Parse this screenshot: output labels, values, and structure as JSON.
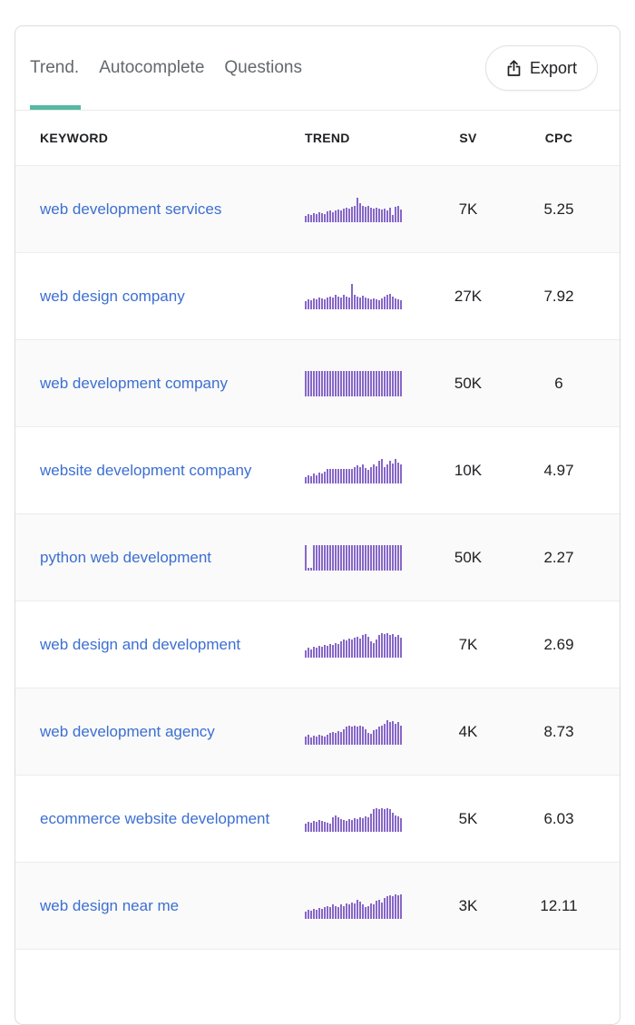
{
  "tabs": [
    {
      "label": "Trend.",
      "active": true
    },
    {
      "label": "Autocomplete",
      "active": false
    },
    {
      "label": "Questions",
      "active": false
    }
  ],
  "export_label": "Export",
  "table": {
    "columns": [
      "KEYWORD",
      "TREND",
      "SV",
      "CPC"
    ],
    "rows": [
      {
        "keyword": "web development services",
        "sv": "7K",
        "cpc": "5.25"
      },
      {
        "keyword": "web design company",
        "sv": "27K",
        "cpc": "7.92"
      },
      {
        "keyword": "web development company",
        "sv": "50K",
        "cpc": "6"
      },
      {
        "keyword": "website development company",
        "sv": "10K",
        "cpc": "4.97"
      },
      {
        "keyword": "python web development",
        "sv": "50K",
        "cpc": "2.27"
      },
      {
        "keyword": "web design and development",
        "sv": "7K",
        "cpc": "2.69"
      },
      {
        "keyword": "web development agency",
        "sv": "4K",
        "cpc": "8.73"
      },
      {
        "keyword": "ecommerce website development",
        "sv": "5K",
        "cpc": "6.03"
      },
      {
        "keyword": "web design near me",
        "sv": "3K",
        "cpc": "12.11"
      }
    ]
  },
  "colors": {
    "accent_teal": "#55b9a4",
    "link_blue": "#3c6fd1",
    "bar_purple": "#8767c8"
  },
  "chart_data": {
    "type": "bar",
    "title": "Monthly search-volume trend sparklines per keyword",
    "ylim": [
      0,
      100
    ],
    "legend": "none",
    "grid": false,
    "series": [
      {
        "name": "web development services",
        "values": [
          22,
          30,
          26,
          34,
          30,
          38,
          34,
          30,
          40,
          44,
          38,
          44,
          48,
          44,
          52,
          56,
          52,
          60,
          64,
          96,
          72,
          64,
          58,
          62,
          56,
          52,
          56,
          52,
          48,
          52,
          46,
          56,
          28,
          60,
          64,
          48
        ]
      },
      {
        "name": "web design company",
        "values": [
          30,
          38,
          34,
          42,
          38,
          46,
          42,
          38,
          46,
          50,
          46,
          54,
          50,
          46,
          56,
          50,
          46,
          100,
          54,
          50,
          46,
          52,
          46,
          42,
          38,
          42,
          38,
          34,
          42,
          48,
          56,
          60,
          50,
          42,
          38,
          34
        ]
      },
      {
        "name": "web development company",
        "values": [
          100,
          100,
          100,
          100,
          100,
          100,
          100,
          100,
          100,
          100,
          100,
          100,
          100,
          100,
          100,
          100,
          100,
          100,
          100,
          100,
          100,
          100,
          100,
          100,
          100,
          100,
          100,
          100,
          100,
          100,
          100,
          100,
          100,
          100,
          100,
          100
        ]
      },
      {
        "name": "website development company",
        "values": [
          24,
          32,
          28,
          36,
          32,
          40,
          36,
          44,
          56,
          56,
          56,
          56,
          56,
          56,
          56,
          56,
          56,
          56,
          62,
          70,
          62,
          74,
          58,
          52,
          64,
          74,
          66,
          86,
          96,
          62,
          74,
          88,
          78,
          94,
          82,
          72
        ]
      },
      {
        "name": "python web development",
        "values": [
          100,
          8,
          8,
          100,
          100,
          100,
          100,
          100,
          100,
          100,
          100,
          100,
          100,
          100,
          100,
          100,
          100,
          100,
          100,
          100,
          100,
          100,
          100,
          100,
          100,
          100,
          100,
          100,
          100,
          100,
          100,
          100,
          100,
          100,
          100,
          100
        ]
      },
      {
        "name": "web design and development",
        "values": [
          28,
          36,
          32,
          40,
          36,
          44,
          40,
          48,
          44,
          52,
          48,
          56,
          52,
          62,
          70,
          66,
          74,
          70,
          78,
          82,
          74,
          88,
          92,
          82,
          62,
          56,
          70,
          86,
          94,
          90,
          94,
          86,
          90,
          82,
          86,
          78
        ]
      },
      {
        "name": "web development agency",
        "values": [
          30,
          38,
          26,
          34,
          30,
          38,
          34,
          30,
          38,
          44,
          48,
          44,
          52,
          48,
          60,
          68,
          72,
          68,
          74,
          68,
          74,
          68,
          58,
          46,
          42,
          54,
          60,
          68,
          74,
          82,
          96,
          86,
          92,
          80,
          86,
          74
        ]
      },
      {
        "name": "ecommerce website development",
        "values": [
          32,
          38,
          34,
          42,
          38,
          46,
          42,
          38,
          34,
          30,
          56,
          64,
          56,
          48,
          44,
          40,
          48,
          44,
          52,
          48,
          56,
          52,
          60,
          56,
          68,
          86,
          92,
          86,
          92,
          86,
          92,
          86,
          74,
          64,
          58,
          52
        ]
      },
      {
        "name": "web design near me",
        "values": [
          28,
          34,
          30,
          38,
          34,
          42,
          38,
          46,
          50,
          46,
          54,
          50,
          46,
          54,
          50,
          58,
          54,
          62,
          58,
          72,
          66,
          56,
          44,
          50,
          58,
          54,
          68,
          74,
          64,
          80,
          86,
          92,
          86,
          94,
          90,
          94
        ]
      }
    ]
  }
}
